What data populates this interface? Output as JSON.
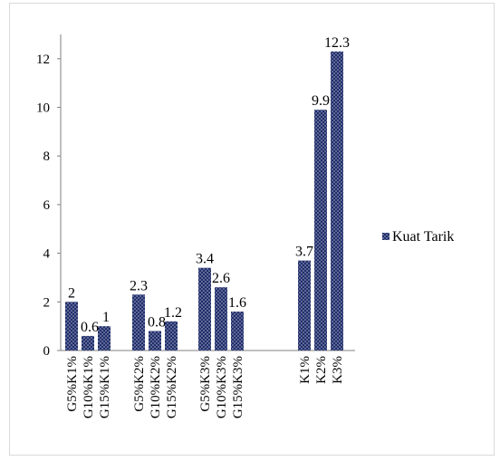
{
  "chart_data": {
    "type": "bar",
    "title": "",
    "xlabel": "",
    "ylabel": "",
    "ylim": [
      0,
      13
    ],
    "yticks": [
      0,
      2,
      4,
      6,
      8,
      10,
      12
    ],
    "grid": false,
    "legend_position": "right",
    "bar_color": "#1f2d6b",
    "bar_pattern": "white-dots",
    "categories": [
      "G5%K1%",
      "G10%K1%",
      "G15%K1%",
      "G5%K2%",
      "G10%K2%",
      "G15%K2%",
      "G5%K3%",
      "G10%K3%",
      "G15%K3%",
      "K1%",
      "K2%",
      "K3%"
    ],
    "groups": [
      3,
      3,
      3,
      3
    ],
    "series": [
      {
        "name": "Kuat Tarik",
        "values": [
          2,
          0.6,
          1,
          2.3,
          0.8,
          1.2,
          3.4,
          2.6,
          1.6,
          3.7,
          9.9,
          12.3
        ],
        "labels": [
          "2",
          "0.6",
          "1",
          "2.3",
          "0.8",
          "1.2",
          "3.4",
          "2.6",
          "1.6",
          "3.7",
          "9.9",
          "12.3"
        ]
      }
    ]
  }
}
